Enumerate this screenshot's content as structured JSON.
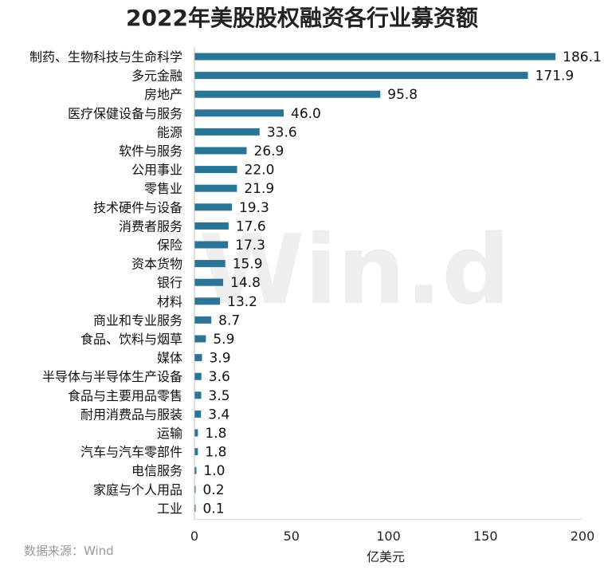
{
  "chart_data": {
    "type": "bar",
    "orientation": "horizontal",
    "title": "2022年美股股权融资各行业募资额",
    "xlabel": "亿美元",
    "ylabel": "",
    "xlim": [
      0,
      200
    ],
    "x_ticks": [
      "0",
      "50",
      "100",
      "150",
      "200"
    ],
    "grid": false,
    "bar_color": "#2a7596",
    "categories": [
      "制药、生物科技与生命科学",
      "多元金融",
      "房地产",
      "医疗保健设备与服务",
      "能源",
      "软件与服务",
      "公用事业",
      "零售业",
      "技术硬件与设备",
      "消费者服务",
      "保险",
      "资本货物",
      "银行",
      "材料",
      "商业和专业服务",
      "食品、饮料与烟草",
      "媒体",
      "半导体与半导体生产设备",
      "食品与主要用品零售",
      "耐用消费品与服装",
      "运输",
      "汽车与汽车零部件",
      "电信服务",
      "家庭与个人用品",
      "工业"
    ],
    "values": [
      186.1,
      171.9,
      95.8,
      46.0,
      33.6,
      26.9,
      22.0,
      21.9,
      19.3,
      17.6,
      17.3,
      15.9,
      14.8,
      13.2,
      8.7,
      5.9,
      3.9,
      3.6,
      3.5,
      3.4,
      1.8,
      1.8,
      1.0,
      0.2,
      0.1
    ],
    "value_labels": [
      "186.1",
      "171.9",
      "95.8",
      "46.0",
      "33.6",
      "26.9",
      "22.0",
      "21.9",
      "19.3",
      "17.6",
      "17.3",
      "15.9",
      "14.8",
      "13.2",
      "8.7",
      "5.9",
      "3.9",
      "3.6",
      "3.5",
      "3.4",
      "1.8",
      "1.8",
      "1.0",
      "0.2",
      "0.1"
    ]
  },
  "source_text": "数据来源：Wind",
  "watermark_text": "Win.d"
}
